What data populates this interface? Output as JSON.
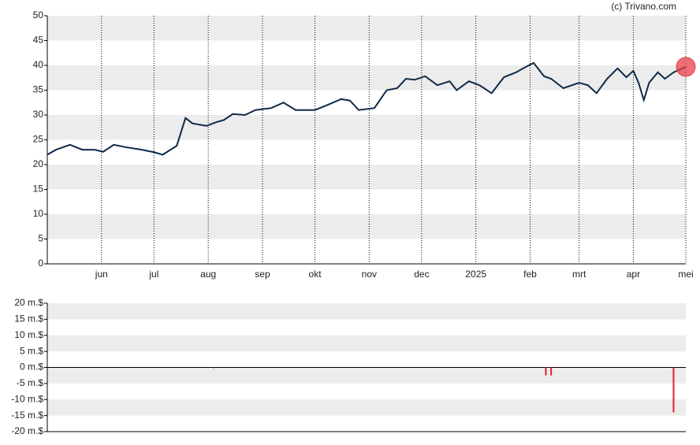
{
  "chart_data": [
    {
      "type": "line",
      "annotation": "(c) Trivano.com",
      "x": [
        0,
        5,
        13,
        20,
        27,
        32,
        38,
        45,
        54,
        61,
        66,
        74,
        79,
        83,
        91,
        97,
        101,
        106,
        113,
        119,
        128,
        135,
        142,
        148,
        153,
        160,
        168,
        173,
        178,
        187,
        194,
        200,
        205,
        210,
        216,
        223,
        230,
        234,
        241,
        247,
        254,
        261,
        268,
        272,
        278,
        284,
        288,
        295,
        304,
        309,
        314,
        320,
        326,
        331,
        335,
        338,
        341,
        344,
        349,
        353,
        358,
        362,
        365
      ],
      "series": [
        {
          "color": "#0e2a47",
          "values": [
            22,
            23,
            24,
            23,
            23,
            22.6,
            24,
            23.5,
            23,
            22.5,
            22,
            23.8,
            29.4,
            28.3,
            27.8,
            28.6,
            29,
            30.2,
            30,
            31,
            31.4,
            32.5,
            31,
            31,
            31,
            32,
            33.2,
            32.9,
            31,
            31.4,
            35,
            35.4,
            37.3,
            37.1,
            37.8,
            36,
            36.8,
            35,
            36.8,
            36,
            34.4,
            37.6,
            38.6,
            39.4,
            40.5,
            37.8,
            37.3,
            35.4,
            36.5,
            36,
            34.4,
            37.3,
            39.4,
            37.6,
            38.9,
            36.5,
            33,
            36.5,
            38.6,
            37.3,
            38.6,
            39.2,
            39.7
          ]
        }
      ],
      "marker_color": "#e8404a",
      "xlim": [
        0,
        365
      ],
      "xticks": [
        {
          "value": 31,
          "label": "jun"
        },
        {
          "value": 61,
          "label": "jul"
        },
        {
          "value": 92,
          "label": "aug"
        },
        {
          "value": 123,
          "label": "sep"
        },
        {
          "value": 153,
          "label": "okt"
        },
        {
          "value": 184,
          "label": "nov"
        },
        {
          "value": 214,
          "label": "dec"
        },
        {
          "value": 245,
          "label": "2025"
        },
        {
          "value": 276,
          "label": "feb"
        },
        {
          "value": 304,
          "label": "mrt"
        },
        {
          "value": 335,
          "label": "apr"
        },
        {
          "value": 365,
          "label": "mei"
        }
      ],
      "ylim": [
        0,
        50
      ],
      "yticks": [
        0,
        5,
        10,
        15,
        20,
        25,
        30,
        35,
        40,
        45,
        50
      ],
      "grid": true
    },
    {
      "type": "bar",
      "x": [
        95,
        285,
        288,
        358
      ],
      "values": [
        -0.2,
        -2.5,
        -2.5,
        -14
      ],
      "colors": [
        "#555555",
        "#e0202e",
        "#e0202e",
        "#e0202e"
      ],
      "xlim": [
        0,
        365
      ],
      "ylim": [
        -20,
        20
      ],
      "yticks": [
        {
          "value": -20,
          "label": "-20 m.$"
        },
        {
          "value": -15,
          "label": "-15 m.$"
        },
        {
          "value": -10,
          "label": "-10 m.$"
        },
        {
          "value": -5,
          "label": "-5 m.$"
        },
        {
          "value": 0,
          "label": "0 m.$"
        },
        {
          "value": 5,
          "label": "5 m.$"
        },
        {
          "value": 10,
          "label": "10 m.$"
        },
        {
          "value": 15,
          "label": "15 m.$"
        },
        {
          "value": 20,
          "label": "20 m.$"
        }
      ],
      "grid": true
    }
  ]
}
